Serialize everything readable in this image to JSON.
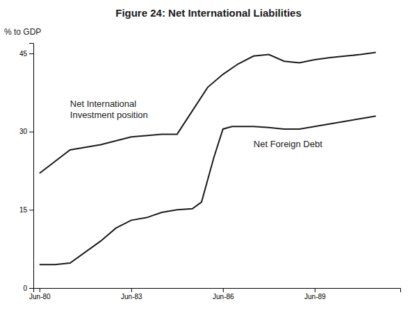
{
  "chart_data": {
    "type": "line",
    "title": "Figure 24: Net International Liabilities",
    "y_label": "% to GDP",
    "series": [
      {
        "name": "Net International\nInvestment position",
        "color": "#1a1a1a",
        "x": [
          1980,
          1981,
          1982,
          1983,
          1984,
          1984.5,
          1985,
          1985.5,
          1986,
          1986.5,
          1987,
          1987.5,
          1988,
          1988.5,
          1989,
          1989.5,
          1990,
          1990.5,
          1991
        ],
        "values": [
          22.0,
          26.5,
          27.5,
          29.0,
          29.5,
          29.5,
          34.0,
          38.5,
          41.0,
          43.0,
          44.5,
          44.8,
          43.5,
          43.2,
          43.8,
          44.2,
          44.5,
          44.8,
          45.2
        ]
      },
      {
        "name": "Net Foreign Debt",
        "color": "#1a1a1a",
        "x": [
          1980,
          1980.5,
          1981,
          1982,
          1982.5,
          1983,
          1983.5,
          1984,
          1984.5,
          1985,
          1985.3,
          1985.7,
          1986,
          1986.3,
          1987,
          1987.5,
          1988,
          1988.5,
          1989,
          1989.5,
          1990,
          1990.5,
          1991
        ],
        "values": [
          4.5,
          4.5,
          4.8,
          9.0,
          11.5,
          13.0,
          13.5,
          14.5,
          15.0,
          15.2,
          16.5,
          25.0,
          30.5,
          31.0,
          31.0,
          30.8,
          30.5,
          30.5,
          31.0,
          31.5,
          32.0,
          32.5,
          33.0
        ]
      }
    ],
    "xlim": [
      1979.8,
      1991.8
    ],
    "xticks": [
      {
        "value": 1980,
        "label": "Jun-80"
      },
      {
        "value": 1983,
        "label": "Jun-83"
      },
      {
        "value": 1986,
        "label": "Jun-86"
      },
      {
        "value": 1989,
        "label": "Jun-89"
      }
    ],
    "ylim": [
      0,
      47
    ],
    "yticks": [
      0,
      15,
      30,
      45
    ],
    "grid": false
  }
}
